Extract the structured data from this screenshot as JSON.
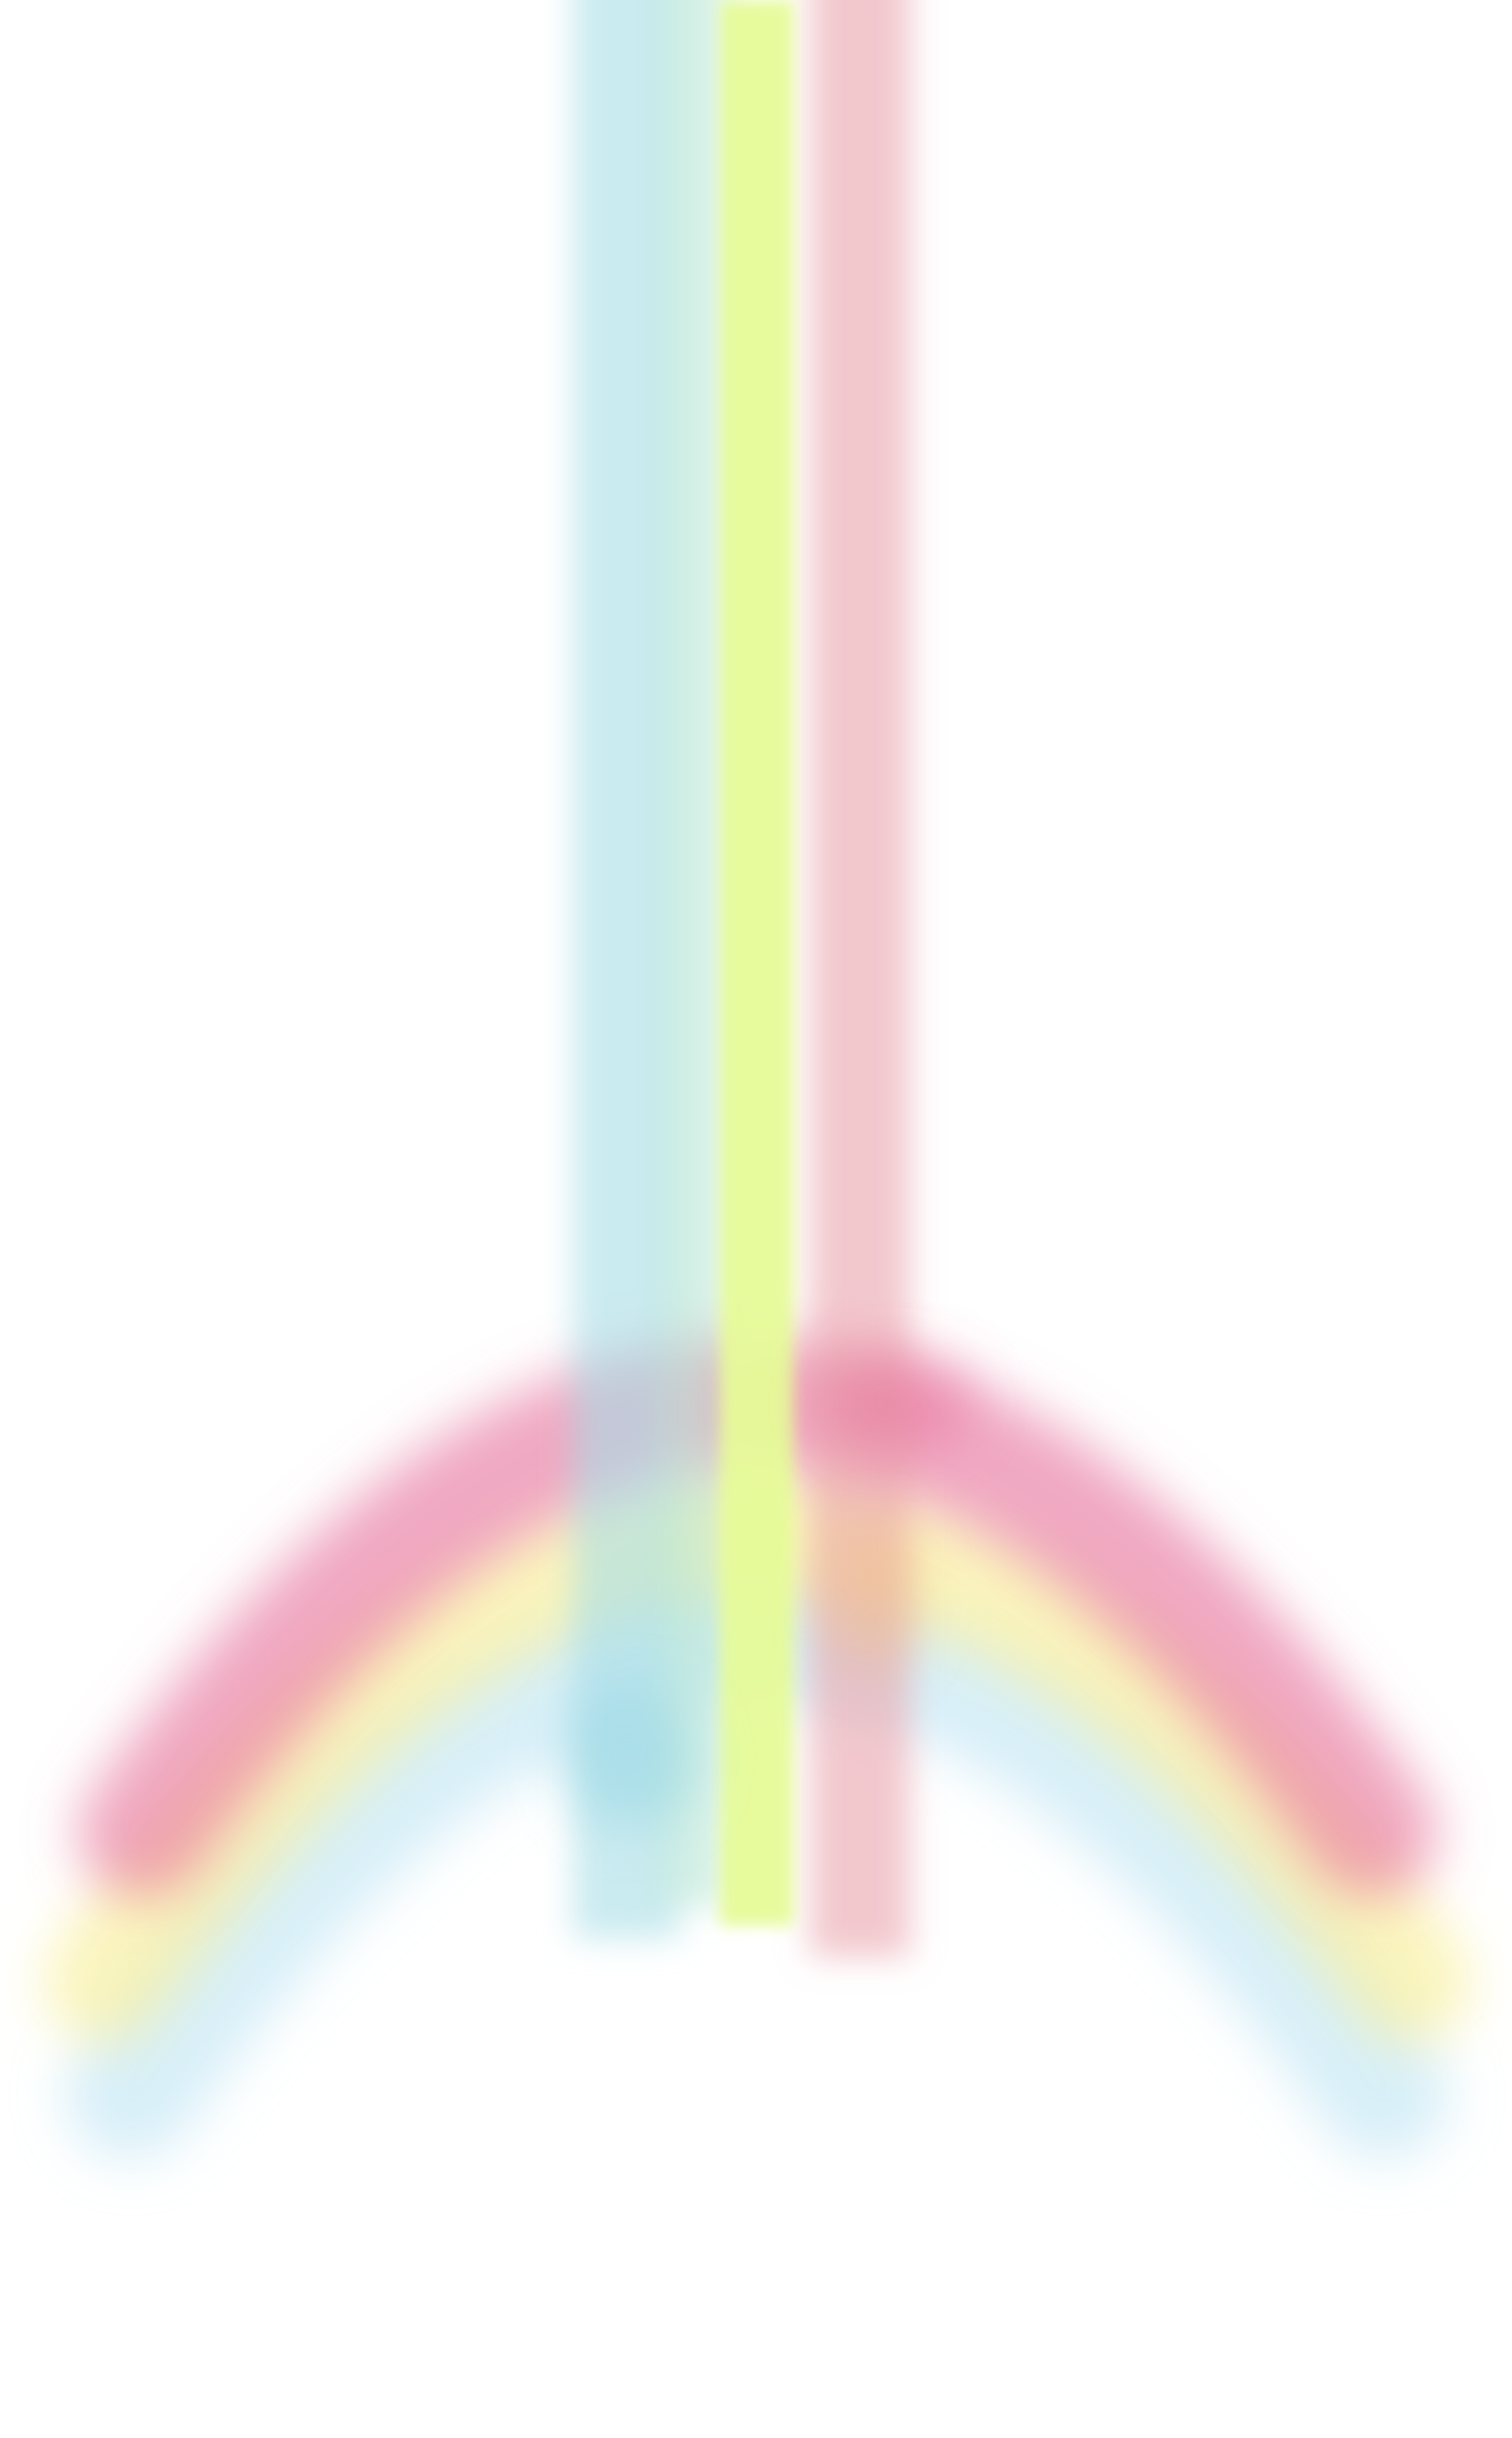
{
  "scene": {
    "description_visible_text": "",
    "background_color": "#ffffff",
    "palette": {
      "cyan": "#a6dde6",
      "mint": "#b6e6d3",
      "lime": "#e6fb98",
      "salmon": "#e9a3ab",
      "pink": "#e66e9a",
      "yellow": "#f8ef92",
      "sky": "#a9dbef"
    }
  }
}
